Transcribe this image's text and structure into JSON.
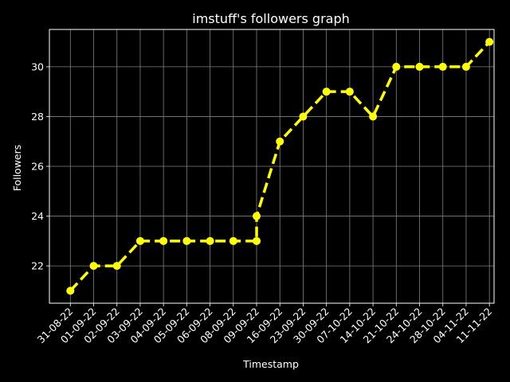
{
  "chart_data": {
    "type": "line",
    "title": "imstuff's followers graph",
    "xlabel": "Timestamp",
    "ylabel": "Followers",
    "categories": [
      "31-08-22",
      "01-09-22",
      "02-09-22",
      "03-09-22",
      "04-09-22",
      "05-09-22",
      "06-09-22",
      "08-09-22",
      "09-09-22",
      "09-09-22",
      "16-09-22",
      "23-09-22",
      "30-09-22",
      "07-10-22",
      "14-10-22",
      "21-10-22",
      "24-10-22",
      "28-10-22",
      "04-11-22",
      "11-11-22"
    ],
    "series": [
      {
        "values": [
          21,
          22,
          22,
          23,
          23,
          23,
          23,
          23,
          23,
          24,
          27,
          28,
          29,
          29,
          28,
          30,
          30,
          30,
          30,
          31
        ]
      }
    ],
    "x_tick_labels": [
      "31-08-22",
      "01-09-22",
      "02-09-22",
      "03-09-22",
      "04-09-22",
      "05-09-22",
      "06-09-22",
      "08-09-22",
      "09-09-22",
      "16-09-22",
      "23-09-22",
      "30-09-22",
      "07-10-22",
      "14-10-22",
      "21-10-22",
      "24-10-22",
      "28-10-22",
      "04-11-22",
      "11-11-22"
    ],
    "y_ticks": [
      22,
      24,
      26,
      28,
      30
    ],
    "ylim": [
      20.5,
      31.5
    ],
    "grid": true,
    "line_style": "dashed",
    "marker": "circle",
    "colors": {
      "background": "#000000",
      "line": "#ffff00",
      "grid": "#808080",
      "text": "#ffffff"
    }
  }
}
